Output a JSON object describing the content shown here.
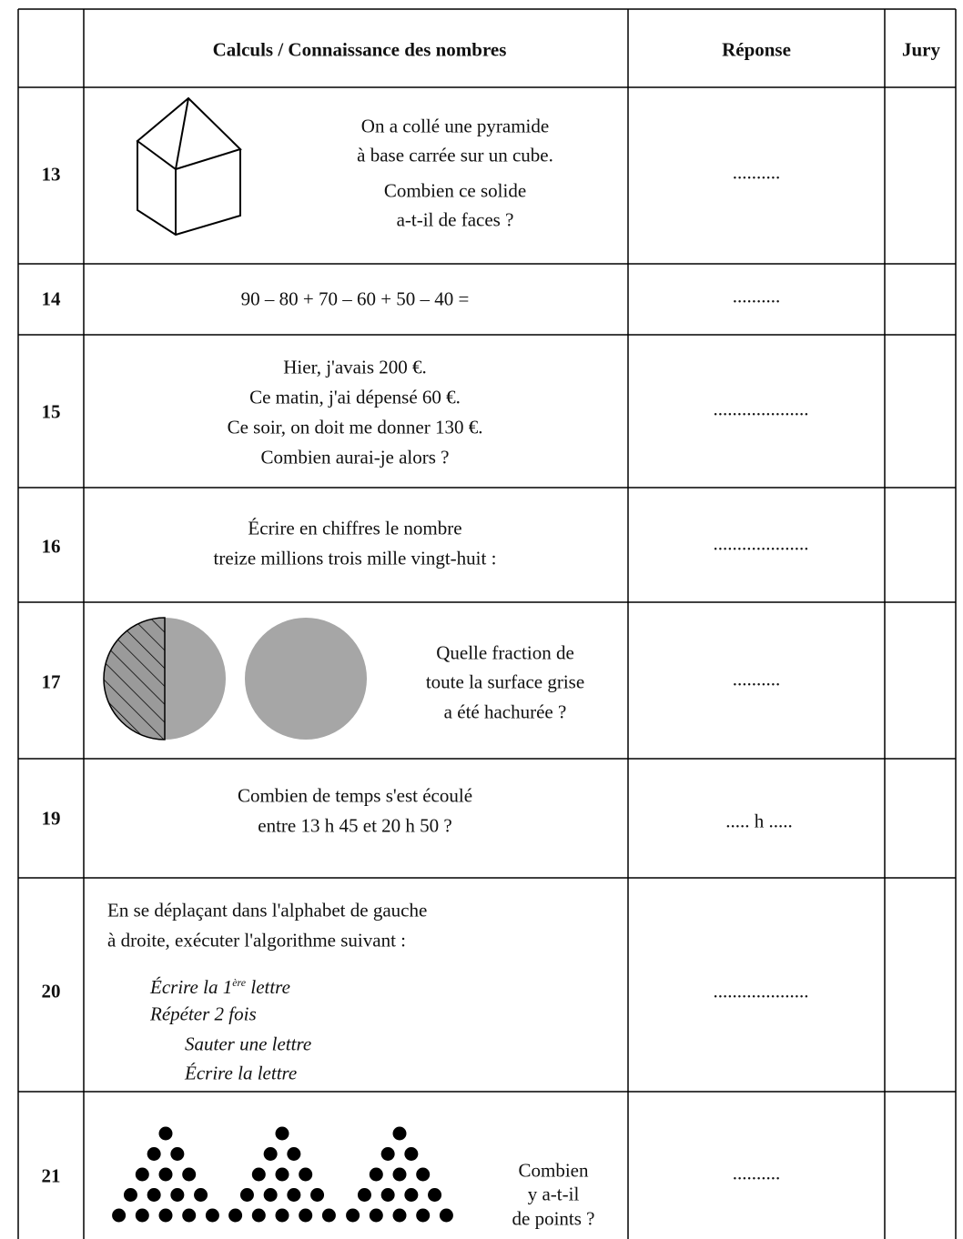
{
  "header": {
    "question": "Calculs / Connaissance des nombres",
    "answer": "Réponse",
    "jury": "Jury"
  },
  "rows": [
    {
      "number": "13",
      "question": [
        "On a collé une pyramide",
        "à base carrée sur un cube.",
        "Combien ce solide",
        "a-t-il de faces ?"
      ],
      "answer": ".........."
    },
    {
      "number": "14",
      "question": [
        "90 – 80 + 70 – 60 + 50 – 40 ="
      ],
      "answer": ".........."
    },
    {
      "number": "15",
      "question": [
        "Hier, j'avais 200 €.",
        "Ce matin, j'ai dépensé 60 €.",
        "Ce soir, on doit me donner 130 €.",
        "Combien aurai-je alors ?"
      ],
      "answer": "...................."
    },
    {
      "number": "16",
      "question": [
        "Écrire en chiffres le nombre",
        "treize millions trois mille vingt-huit :"
      ],
      "answer": "...................."
    },
    {
      "number": "17",
      "question": [
        "Quelle fraction de",
        "toute la surface grise",
        "a été hachurée ?"
      ],
      "answer": ".........."
    },
    {
      "number": "19",
      "question": [
        "Combien de temps s'est écoulé",
        "entre 13 h 45 et 20 h 50 ?"
      ],
      "answer": "..... h ....."
    },
    {
      "number": "20",
      "question": [
        "En se déplaçant dans l'alphabet de gauche",
        "à droite, exécuter l'algorithme suivant :"
      ],
      "algorithm": [
        [
          "Écrire la 1",
          "ère",
          " lettre"
        ],
        "Répéter 2 fois",
        "Sauter une lettre",
        "Écrire la lettre"
      ],
      "answer": "...................."
    },
    {
      "number": "21",
      "question": [
        "Combien",
        "y a-t-il",
        "de points ?"
      ],
      "answer": ".........."
    }
  ]
}
